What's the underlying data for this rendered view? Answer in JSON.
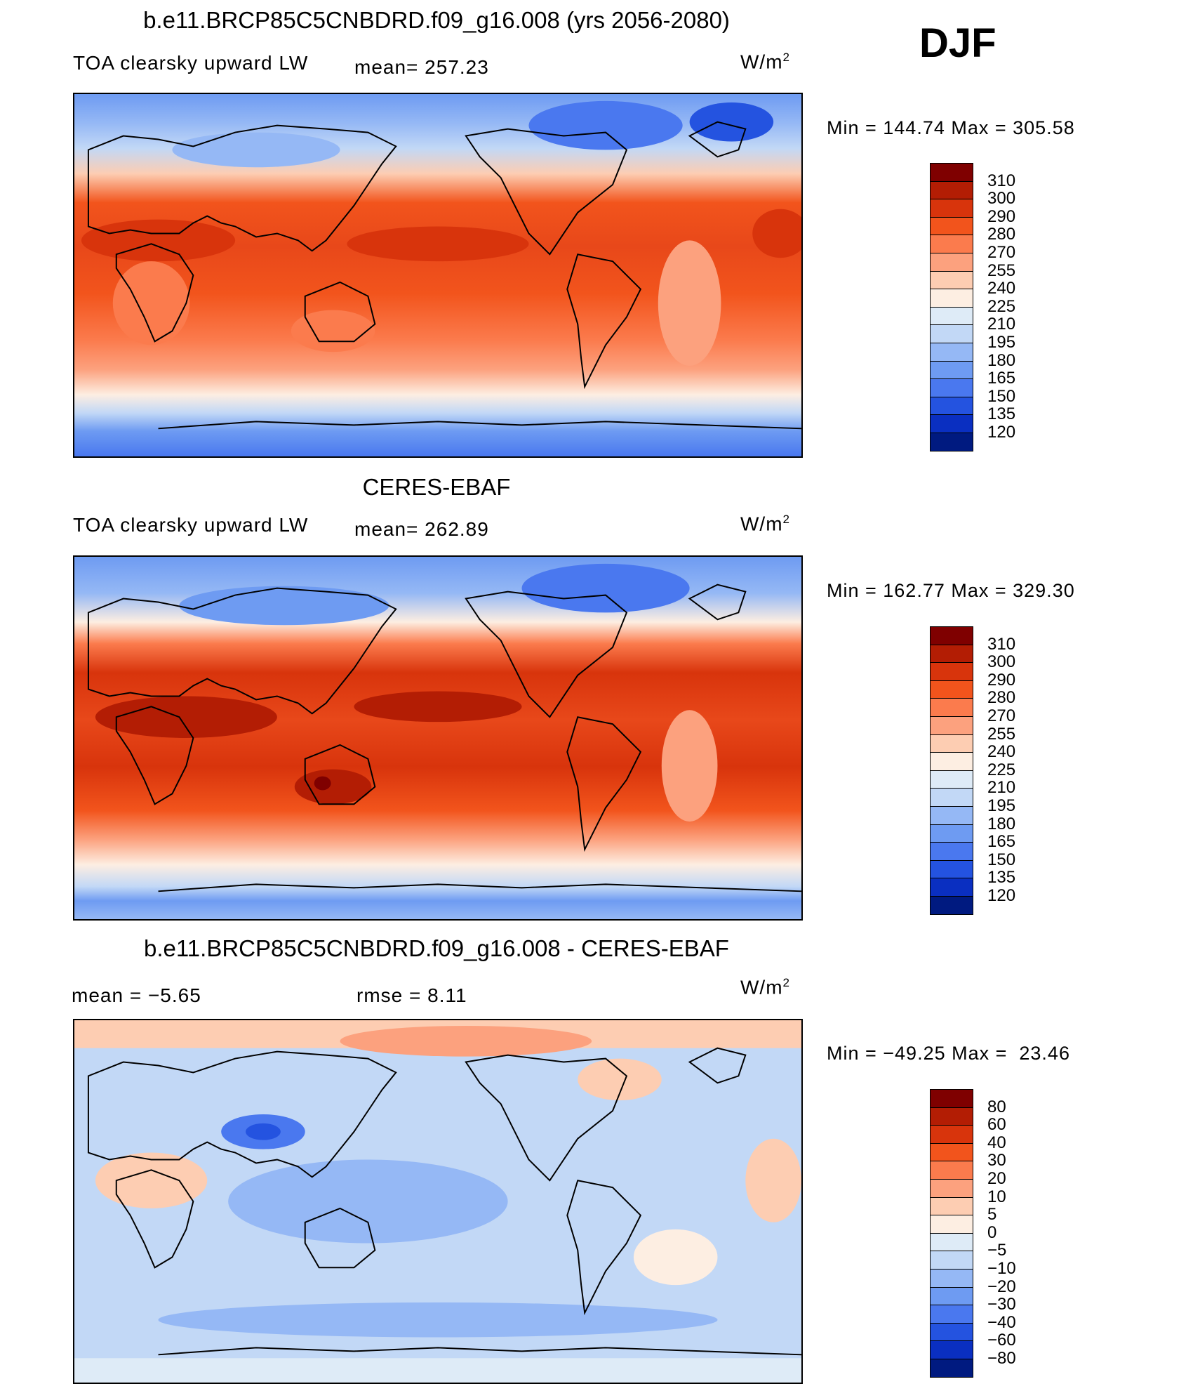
{
  "season": "DJF",
  "panels": [
    {
      "id": "model",
      "title": "b.e11.BRCP85C5CNBDRD.f09_g16.008 (yrs 2056-2080)",
      "left_text": "TOA clearsky upward LW",
      "stat_text": "mean= 257.23",
      "units": "W/m",
      "units_sup": "2",
      "minmax": "Min = 144.74 Max = 305.58",
      "colorbar_labels": [
        "310",
        "300",
        "290",
        "280",
        "270",
        "255",
        "240",
        "225",
        "210",
        "195",
        "180",
        "165",
        "150",
        "135",
        "120"
      ]
    },
    {
      "id": "obs",
      "title": "CERES-EBAF",
      "left_text": "TOA clearsky upward LW",
      "stat_text": "mean= 262.89",
      "units": "W/m",
      "units_sup": "2",
      "minmax": "Min = 162.77 Max = 329.30",
      "colorbar_labels": [
        "310",
        "300",
        "290",
        "280",
        "270",
        "255",
        "240",
        "225",
        "210",
        "195",
        "180",
        "165",
        "150",
        "135",
        "120"
      ]
    },
    {
      "id": "diff",
      "title": "b.e11.BRCP85C5CNBDRD.f09_g16.008 - CERES-EBAF",
      "left_text": "mean =  −5.65",
      "stat_text": "rmse =   8.11",
      "units": "W/m",
      "units_sup": "2",
      "minmax": "Min = −49.25 Max =  23.46",
      "colorbar_labels": [
        "80",
        "60",
        "40",
        "30",
        "20",
        "10",
        "5",
        "0",
        "−5",
        "−10",
        "−20",
        "−30",
        "−40",
        "−60",
        "−80"
      ]
    }
  ],
  "colorbar_colors": [
    "#7f0000",
    "#b31d04",
    "#d8340c",
    "#f2541c",
    "#fb7b4d",
    "#fca17e",
    "#fdcdb2",
    "#fdeee2",
    "#deebf7",
    "#c2d8f6",
    "#95b8f5",
    "#6e9bf2",
    "#4a78ef",
    "#2453e0",
    "#0a2fc1",
    "#001a80"
  ]
}
